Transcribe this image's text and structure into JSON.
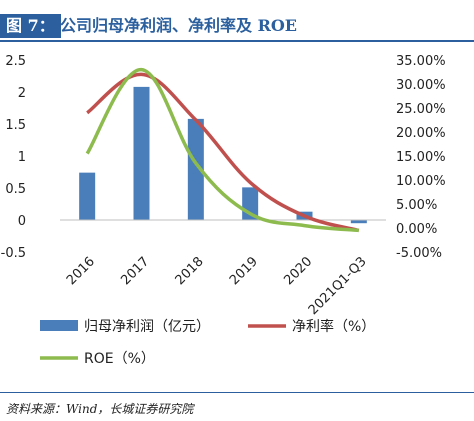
{
  "header": {
    "label": "图 7：",
    "title": "公司归母净利润、净利率及 ROE"
  },
  "source": "资料来源：Wind，长城证券研究院",
  "colors": {
    "brand": "#2b5f9e",
    "bar": "#4a7ebb",
    "net_margin": "#c0504d",
    "roe": "#8dbb4e"
  },
  "chart_data": {
    "type": "bar",
    "categories": [
      "2016",
      "2017",
      "2018",
      "2019",
      "2020",
      "2021Q1-Q3"
    ],
    "left_axis": {
      "ylim": [
        -0.5,
        2.5
      ],
      "ticks": [
        "-0.5",
        "0",
        "0.5",
        "1",
        "1.5",
        "2",
        "2.5"
      ]
    },
    "right_axis": {
      "ylim": [
        -5,
        35
      ],
      "ticks": [
        "-5.00%",
        "0.00%",
        "5.00%",
        "10.00%",
        "15.00%",
        "20.00%",
        "25.00%",
        "30.00%",
        "35.00%"
      ]
    },
    "series": [
      {
        "name": "归母净利润（亿元）",
        "type": "bar",
        "axis": "left",
        "values": [
          0.74,
          2.08,
          1.58,
          0.51,
          0.13,
          -0.05
        ]
      },
      {
        "name": "净利率（%）",
        "type": "line",
        "axis": "right",
        "values": [
          24.0,
          32.0,
          22.5,
          9.5,
          2.5,
          -0.5
        ]
      },
      {
        "name": "ROE（%）",
        "type": "line",
        "axis": "right",
        "values": [
          15.5,
          33.0,
          13.5,
          3.0,
          0.5,
          -0.5
        ]
      }
    ],
    "grid": false,
    "legend": "bottom"
  }
}
